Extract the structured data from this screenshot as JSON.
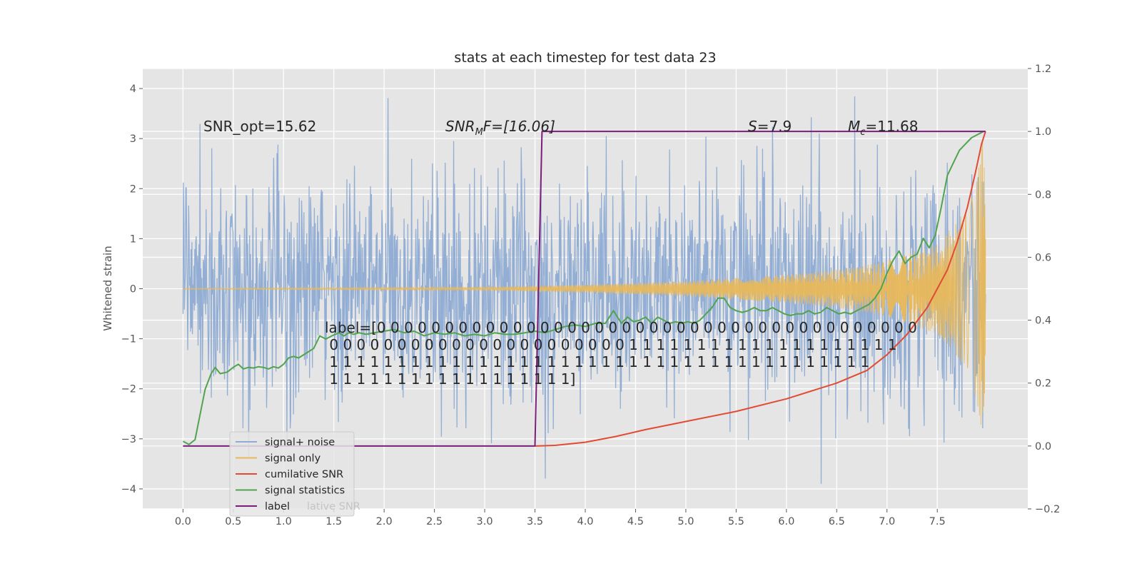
{
  "chart_data": {
    "type": "line",
    "title": "stats at each timestep for test data 23",
    "xlabel": "",
    "ylabel": "Whitened strain",
    "xlim": [
      -0.4,
      8.4
    ],
    "ylim": [
      -4.4,
      4.4
    ],
    "y2lim": [
      -0.2,
      1.2
    ],
    "grid": true,
    "background": "#e5e5e5",
    "x_ticks": [
      "0.0",
      "0.5",
      "1.0",
      "1.5",
      "2.0",
      "2.5",
      "3.0",
      "3.5",
      "4.0",
      "4.5",
      "5.0",
      "5.5",
      "6.0",
      "6.5",
      "7.0",
      "7.5"
    ],
    "y_ticks": [
      "−4",
      "−3",
      "−2",
      "−1",
      "0",
      "1",
      "2",
      "3",
      "4"
    ],
    "y2_ticks": [
      "−0.2",
      "0.0",
      "0.2",
      "0.4",
      "0.6",
      "0.8",
      "1.0",
      "1.2"
    ],
    "legend_loc": "lower left",
    "legend_overlap_text": "lative SNR",
    "annotations": {
      "snr_opt": "SNR_opt=15.62",
      "snr_mf_var": "SNR",
      "snr_mf_sub": "M",
      "snr_mf_rest": "F=[16.06]",
      "s_var": "S",
      "s_rest": "=7.9",
      "mc_var": "M",
      "mc_sub": "c",
      "mc_rest": "=11.68"
    },
    "label_text_lines": [
      "label=[0 0 0 0 0 0 0 0 0 0 0 0 0 0 0 0 0 0 0 0 0 0 0 0 0 0 0 0 0 0 0 0 0 0 0 0 0 0 0 0",
      " 0 0 0 0 0 0 0 0 0 0 0 0 0 0 0 0 0 0 0 0 0 0 1 1 1 1 1 1 1 1 1 1 1 1 1 1 1 1 1 1 1 1",
      " 1 1 1 1 1 1 1 1 1 1 1 1 1 1 1 1 1 1 1 1 1 1 1 1 1 1 1 1 1 1 1 1 1 1 1 1 1 1 1 1",
      " 1 1 1 1 1 1 1 1 1 1 1 1 1 1 1 1 1 1]"
    ],
    "series": [
      {
        "name": "signal+ noise",
        "axis": "left",
        "color": "#8eabd3",
        "kind": "noise",
        "x_range": [
          0.0,
          7.98
        ],
        "std": 1.15
      },
      {
        "name": "signal only",
        "axis": "left",
        "color": "#e8b85a",
        "kind": "chirp",
        "x_range": [
          0.0,
          7.98
        ],
        "envelope_points": [
          [
            0.0,
            0.01
          ],
          [
            3.0,
            0.03
          ],
          [
            4.0,
            0.08
          ],
          [
            5.0,
            0.15
          ],
          [
            6.0,
            0.28
          ],
          [
            6.5,
            0.38
          ],
          [
            7.0,
            0.55
          ],
          [
            7.5,
            0.9
          ],
          [
            7.8,
            1.6
          ],
          [
            7.9,
            2.3
          ],
          [
            7.96,
            3.2
          ],
          [
            7.98,
            1.0
          ]
        ]
      },
      {
        "name": "cumilative SNR",
        "axis": "right",
        "color": "#e24a33",
        "x": [
          3.5,
          3.7,
          4.0,
          4.3,
          4.6,
          5.0,
          5.5,
          6.0,
          6.5,
          6.8,
          7.0,
          7.2,
          7.4,
          7.6,
          7.7,
          7.8,
          7.88,
          7.94,
          7.98
        ],
        "values": [
          0.0,
          0.002,
          0.012,
          0.03,
          0.052,
          0.078,
          0.11,
          0.15,
          0.2,
          0.24,
          0.29,
          0.355,
          0.44,
          0.56,
          0.65,
          0.76,
          0.87,
          0.96,
          1.0
        ]
      },
      {
        "name": "signal statistics",
        "axis": "right",
        "color": "#52a34f",
        "x": [
          0.0,
          0.06,
          0.12,
          0.17,
          0.22,
          0.28,
          0.32,
          0.37,
          0.44,
          0.5,
          0.55,
          0.6,
          0.65,
          0.7,
          0.75,
          0.8,
          0.85,
          0.9,
          0.95,
          1.0,
          1.05,
          1.1,
          1.15,
          1.2,
          1.25,
          1.3,
          1.36,
          1.42,
          1.48,
          1.55,
          1.6,
          1.65,
          1.7,
          1.75,
          1.82,
          1.9,
          2.0,
          2.1,
          2.2,
          2.3,
          2.4,
          2.5,
          2.6,
          2.7,
          2.8,
          2.9,
          3.0,
          3.1,
          3.2,
          3.3,
          3.4,
          3.5,
          3.6,
          3.7,
          3.8,
          3.9,
          4.0,
          4.1,
          4.2,
          4.28,
          4.36,
          4.42,
          4.48,
          4.54,
          4.6,
          4.66,
          4.72,
          4.78,
          4.84,
          4.9,
          4.96,
          5.02,
          5.08,
          5.14,
          5.2,
          5.26,
          5.32,
          5.38,
          5.44,
          5.5,
          5.56,
          5.62,
          5.68,
          5.74,
          5.8,
          5.86,
          5.92,
          5.98,
          6.04,
          6.1,
          6.16,
          6.22,
          6.28,
          6.34,
          6.4,
          6.46,
          6.52,
          6.58,
          6.64,
          6.7,
          6.76,
          6.82,
          6.88,
          6.94,
          7.0,
          7.06,
          7.12,
          7.18,
          7.24,
          7.3,
          7.36,
          7.42,
          7.48,
          7.54,
          7.6,
          7.66,
          7.72,
          7.78,
          7.84,
          7.9,
          7.96
        ],
        "values": [
          0.015,
          0.005,
          0.02,
          0.1,
          0.18,
          0.23,
          0.25,
          0.23,
          0.235,
          0.25,
          0.26,
          0.245,
          0.25,
          0.248,
          0.252,
          0.25,
          0.245,
          0.252,
          0.248,
          0.26,
          0.28,
          0.285,
          0.28,
          0.29,
          0.3,
          0.31,
          0.35,
          0.34,
          0.35,
          0.36,
          0.35,
          0.36,
          0.355,
          0.36,
          0.355,
          0.36,
          0.365,
          0.37,
          0.36,
          0.365,
          0.35,
          0.36,
          0.355,
          0.36,
          0.35,
          0.355,
          0.35,
          0.36,
          0.355,
          0.355,
          0.36,
          0.365,
          0.36,
          0.37,
          0.38,
          0.385,
          0.38,
          0.39,
          0.39,
          0.43,
          0.39,
          0.41,
          0.395,
          0.4,
          0.41,
          0.39,
          0.41,
          0.4,
          0.39,
          0.395,
          0.39,
          0.395,
          0.39,
          0.4,
          0.42,
          0.44,
          0.47,
          0.47,
          0.44,
          0.43,
          0.425,
          0.43,
          0.44,
          0.43,
          0.43,
          0.44,
          0.43,
          0.42,
          0.415,
          0.42,
          0.42,
          0.43,
          0.42,
          0.425,
          0.44,
          0.43,
          0.42,
          0.425,
          0.42,
          0.43,
          0.44,
          0.45,
          0.47,
          0.5,
          0.55,
          0.59,
          0.62,
          0.58,
          0.6,
          0.61,
          0.66,
          0.63,
          0.67,
          0.76,
          0.86,
          0.9,
          0.94,
          0.96,
          0.98,
          0.99,
          1.0
        ]
      },
      {
        "name": "label",
        "axis": "right",
        "color": "#7b1e7a",
        "x": [
          0.0,
          3.5,
          3.57,
          7.98
        ],
        "values": [
          0.0,
          0.0,
          1.0,
          1.0
        ]
      }
    ]
  }
}
